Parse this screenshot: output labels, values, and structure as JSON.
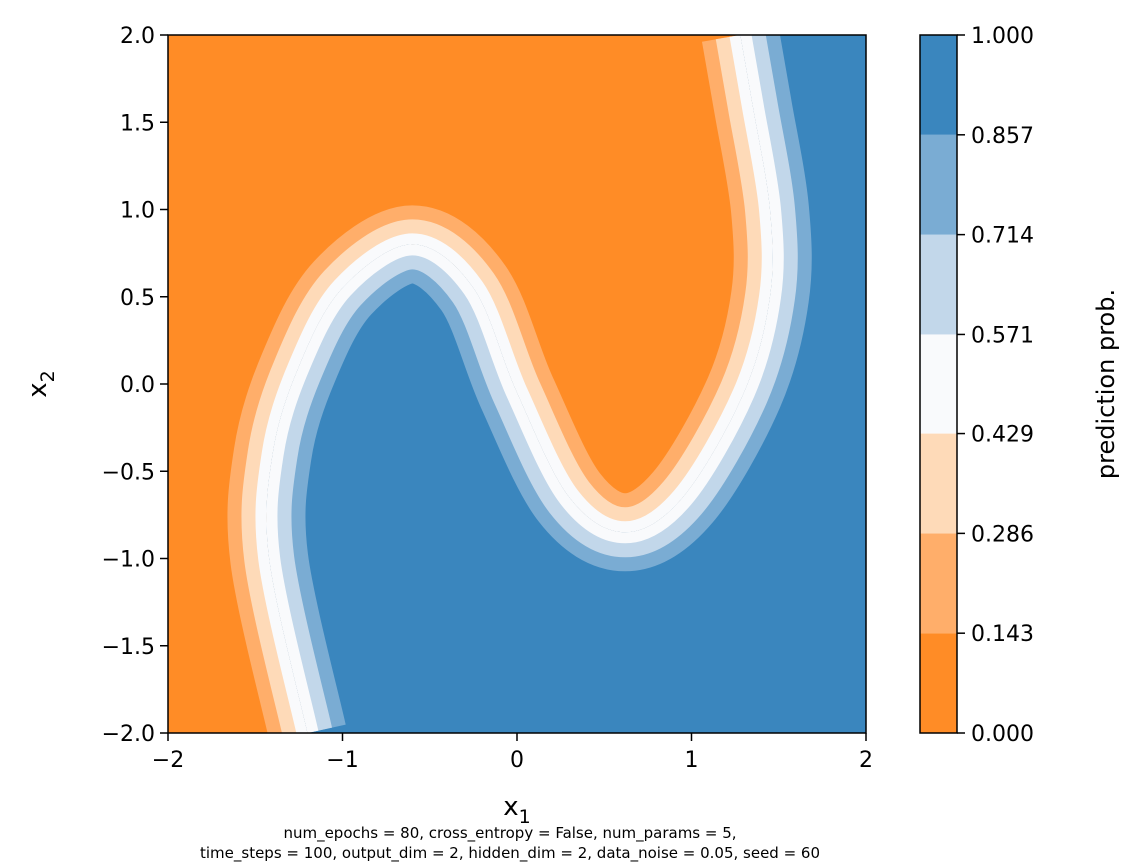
{
  "chart_data": {
    "type": "contour",
    "title": "",
    "xlabel": "x",
    "xlabel_sub": "1",
    "ylabel": "x",
    "ylabel_sub": "2",
    "xlim": [
      -2,
      2
    ],
    "ylim": [
      -2,
      2
    ],
    "x_ticks": [
      -2,
      -1,
      0,
      1,
      2
    ],
    "x_tick_labels": [
      "−2",
      "−1",
      "0",
      "1",
      "2"
    ],
    "y_ticks": [
      -2.0,
      -1.5,
      -1.0,
      -0.5,
      0.0,
      0.5,
      1.0,
      1.5,
      2.0
    ],
    "y_tick_labels": [
      "−2.0",
      "−1.5",
      "−1.0",
      "−0.5",
      "0.0",
      "0.5",
      "1.0",
      "1.5",
      "2.0"
    ],
    "grid": false,
    "colorbar": {
      "label": "prediction prob.",
      "levels": [
        0.0,
        0.143,
        0.286,
        0.429,
        0.571,
        0.714,
        0.857,
        1.0
      ],
      "tick_labels": [
        "0.000",
        "0.143",
        "0.286",
        "0.429",
        "0.571",
        "0.714",
        "0.857",
        "1.000"
      ],
      "colors": [
        "#ff8c26",
        "#ffae6a",
        "#fedab8",
        "#f9fafc",
        "#c2d7ea",
        "#7aacd3",
        "#3a86be"
      ]
    },
    "decision_boundary": [
      [
        -1.2,
        -2.0
      ],
      [
        -1.42,
        -1.0
      ],
      [
        -1.4,
        -0.4
      ],
      [
        -1.25,
        0.1
      ],
      [
        -1.0,
        0.55
      ],
      [
        -0.6,
        0.8
      ],
      [
        -0.25,
        0.55
      ],
      [
        0.0,
        -0.05
      ],
      [
        0.3,
        -0.65
      ],
      [
        0.62,
        -0.85
      ],
      [
        0.95,
        -0.65
      ],
      [
        1.3,
        -0.05
      ],
      [
        1.45,
        0.5
      ],
      [
        1.45,
        1.0
      ],
      [
        1.35,
        1.6
      ],
      [
        1.28,
        2.0
      ]
    ],
    "footnote_lines": [
      "num_epochs = 80, cross_entropy = False, num_params = 5,",
      "time_steps = 100, output_dim = 2, hidden_dim = 2, data_noise = 0.05, seed = 60"
    ]
  }
}
